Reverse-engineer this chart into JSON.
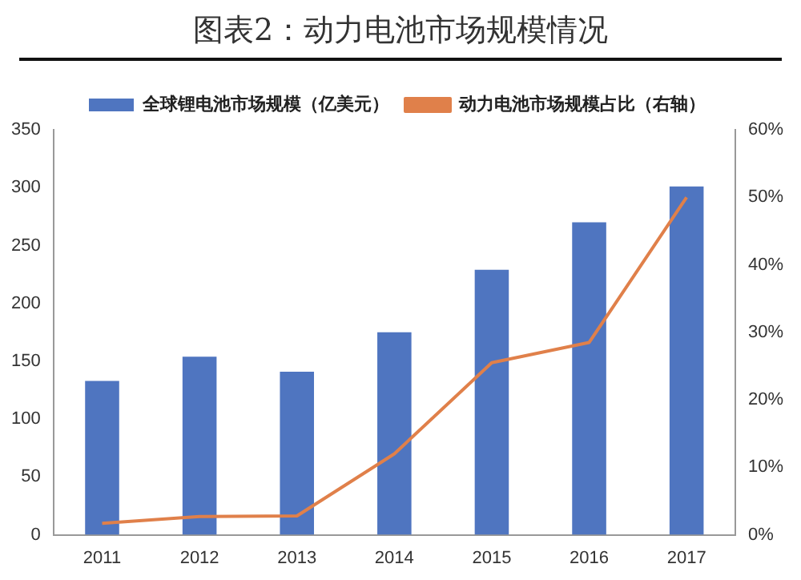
{
  "chart_data": {
    "type": "bar",
    "title": "图表2：动力电池市场规模情况",
    "categories": [
      "2011",
      "2012",
      "2013",
      "2014",
      "2015",
      "2016",
      "2017"
    ],
    "series": [
      {
        "name": "全球锂电池市场规模（亿美元）",
        "color": "#4f75c0",
        "values": [
          133,
          154,
          141,
          175,
          229,
          270,
          301
        ]
      },
      {
        "name": "动力电池市场规模占比（右轴）",
        "type": "line",
        "axis": "y2",
        "color": "#e0804a",
        "values": [
          1.7,
          2.7,
          2.8,
          12,
          25.5,
          28.5,
          50
        ]
      }
    ],
    "ylim": [
      0,
      350
    ],
    "yticks": [
      0,
      50,
      100,
      150,
      200,
      250,
      300,
      350
    ],
    "y2lim": [
      0,
      60
    ],
    "y2ticks": [
      {
        "value": 0,
        "label": "0%"
      },
      {
        "value": 10,
        "label": "10%"
      },
      {
        "value": 20,
        "label": "20%"
      },
      {
        "value": 30,
        "label": "30%"
      },
      {
        "value": 40,
        "label": "40%"
      },
      {
        "value": 50,
        "label": "50%"
      },
      {
        "value": 60,
        "label": "60%"
      }
    ],
    "legend": "top",
    "grid": false,
    "marker": "none"
  }
}
